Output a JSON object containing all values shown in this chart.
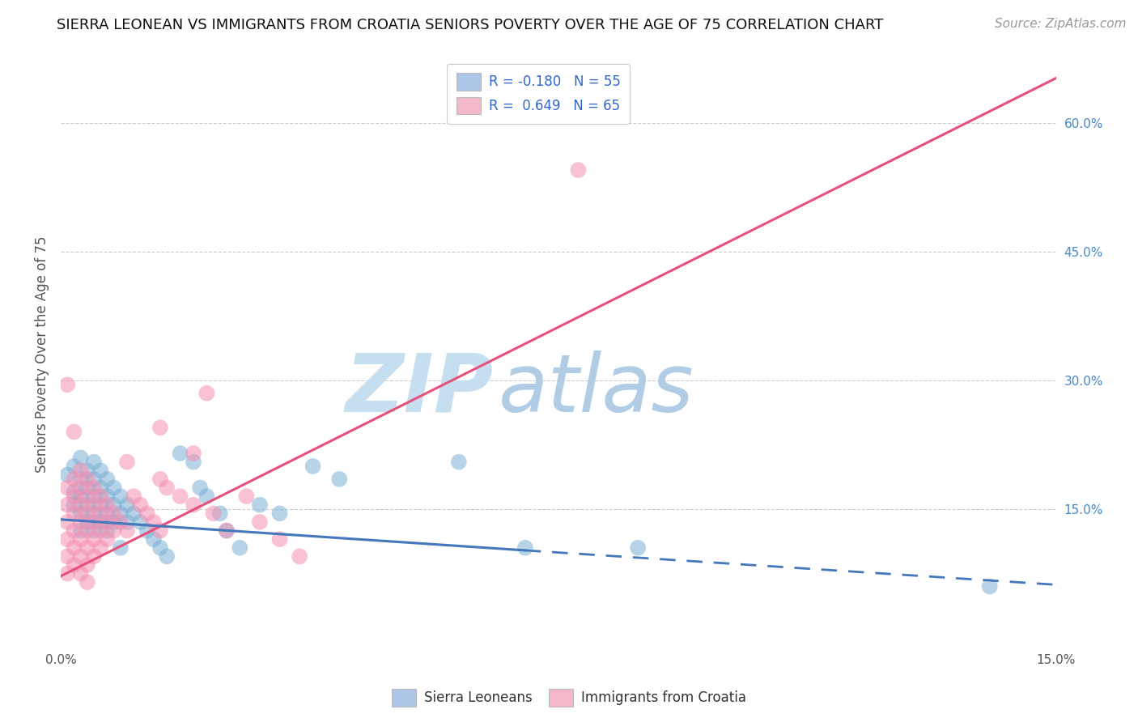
{
  "title": "SIERRA LEONEAN VS IMMIGRANTS FROM CROATIA SENIORS POVERTY OVER THE AGE OF 75 CORRELATION CHART",
  "source": "Source: ZipAtlas.com",
  "ylabel": "Seniors Poverty Over the Age of 75",
  "xlim": [
    0.0,
    0.15
  ],
  "ylim": [
    -0.01,
    0.67
  ],
  "background_color": "#ffffff",
  "grid_color": "#cccccc",
  "watermark_zip_color": "#c8dff0",
  "watermark_atlas_color": "#b8d4e8",
  "blue_scatter_color": "#7bafd4",
  "pink_scatter_color": "#f48fb1",
  "blue_line_color": "#4477bb",
  "pink_line_color": "#e8507a",
  "blue_legend_color": "#adc6e8",
  "pink_legend_color": "#f4b8c8",
  "title_fontsize": 13,
  "source_fontsize": 11,
  "ylabel_fontsize": 12,
  "axis_label_color": "#555555",
  "right_tick_color": "#4488cc",
  "blue_line_solid": {
    "x": [
      0.0,
      0.07
    ],
    "y": [
      0.138,
      0.102
    ]
  },
  "blue_line_dashed": {
    "x": [
      0.07,
      0.15
    ],
    "y": [
      0.102,
      0.062
    ]
  },
  "pink_line": {
    "x": [
      0.0,
      0.15
    ],
    "y": [
      0.072,
      0.652
    ]
  },
  "blue_scatter": [
    [
      0.001,
      0.19
    ],
    [
      0.002,
      0.2
    ],
    [
      0.002,
      0.17
    ],
    [
      0.002,
      0.155
    ],
    [
      0.003,
      0.21
    ],
    [
      0.003,
      0.185
    ],
    [
      0.003,
      0.165
    ],
    [
      0.003,
      0.145
    ],
    [
      0.003,
      0.125
    ],
    [
      0.004,
      0.195
    ],
    [
      0.004,
      0.175
    ],
    [
      0.004,
      0.155
    ],
    [
      0.004,
      0.135
    ],
    [
      0.005,
      0.205
    ],
    [
      0.005,
      0.185
    ],
    [
      0.005,
      0.165
    ],
    [
      0.005,
      0.145
    ],
    [
      0.005,
      0.125
    ],
    [
      0.006,
      0.195
    ],
    [
      0.006,
      0.175
    ],
    [
      0.006,
      0.155
    ],
    [
      0.006,
      0.135
    ],
    [
      0.007,
      0.185
    ],
    [
      0.007,
      0.165
    ],
    [
      0.007,
      0.145
    ],
    [
      0.007,
      0.125
    ],
    [
      0.008,
      0.175
    ],
    [
      0.008,
      0.155
    ],
    [
      0.008,
      0.135
    ],
    [
      0.009,
      0.165
    ],
    [
      0.009,
      0.145
    ],
    [
      0.009,
      0.105
    ],
    [
      0.01,
      0.155
    ],
    [
      0.01,
      0.135
    ],
    [
      0.011,
      0.145
    ],
    [
      0.012,
      0.135
    ],
    [
      0.013,
      0.125
    ],
    [
      0.014,
      0.115
    ],
    [
      0.015,
      0.105
    ],
    [
      0.016,
      0.095
    ],
    [
      0.018,
      0.215
    ],
    [
      0.02,
      0.205
    ],
    [
      0.021,
      0.175
    ],
    [
      0.022,
      0.165
    ],
    [
      0.024,
      0.145
    ],
    [
      0.025,
      0.125
    ],
    [
      0.027,
      0.105
    ],
    [
      0.03,
      0.155
    ],
    [
      0.033,
      0.145
    ],
    [
      0.038,
      0.2
    ],
    [
      0.042,
      0.185
    ],
    [
      0.06,
      0.205
    ],
    [
      0.07,
      0.105
    ],
    [
      0.087,
      0.105
    ],
    [
      0.14,
      0.06
    ]
  ],
  "pink_scatter": [
    [
      0.001,
      0.175
    ],
    [
      0.001,
      0.155
    ],
    [
      0.001,
      0.135
    ],
    [
      0.001,
      0.115
    ],
    [
      0.001,
      0.095
    ],
    [
      0.001,
      0.075
    ],
    [
      0.002,
      0.185
    ],
    [
      0.002,
      0.165
    ],
    [
      0.002,
      0.145
    ],
    [
      0.002,
      0.125
    ],
    [
      0.002,
      0.105
    ],
    [
      0.002,
      0.085
    ],
    [
      0.003,
      0.195
    ],
    [
      0.003,
      0.175
    ],
    [
      0.003,
      0.155
    ],
    [
      0.003,
      0.135
    ],
    [
      0.003,
      0.115
    ],
    [
      0.003,
      0.095
    ],
    [
      0.003,
      0.075
    ],
    [
      0.004,
      0.185
    ],
    [
      0.004,
      0.165
    ],
    [
      0.004,
      0.145
    ],
    [
      0.004,
      0.125
    ],
    [
      0.004,
      0.105
    ],
    [
      0.004,
      0.085
    ],
    [
      0.004,
      0.065
    ],
    [
      0.005,
      0.175
    ],
    [
      0.005,
      0.155
    ],
    [
      0.005,
      0.135
    ],
    [
      0.005,
      0.115
    ],
    [
      0.005,
      0.095
    ],
    [
      0.006,
      0.165
    ],
    [
      0.006,
      0.145
    ],
    [
      0.006,
      0.125
    ],
    [
      0.006,
      0.105
    ],
    [
      0.007,
      0.155
    ],
    [
      0.007,
      0.135
    ],
    [
      0.007,
      0.115
    ],
    [
      0.008,
      0.145
    ],
    [
      0.008,
      0.125
    ],
    [
      0.009,
      0.135
    ],
    [
      0.01,
      0.205
    ],
    [
      0.01,
      0.125
    ],
    [
      0.011,
      0.165
    ],
    [
      0.012,
      0.155
    ],
    [
      0.013,
      0.145
    ],
    [
      0.014,
      0.135
    ],
    [
      0.015,
      0.185
    ],
    [
      0.015,
      0.125
    ],
    [
      0.016,
      0.175
    ],
    [
      0.018,
      0.165
    ],
    [
      0.02,
      0.155
    ],
    [
      0.022,
      0.285
    ],
    [
      0.023,
      0.145
    ],
    [
      0.025,
      0.125
    ],
    [
      0.028,
      0.165
    ],
    [
      0.03,
      0.135
    ],
    [
      0.033,
      0.115
    ],
    [
      0.036,
      0.095
    ],
    [
      0.001,
      0.295
    ],
    [
      0.002,
      0.24
    ],
    [
      0.078,
      0.545
    ],
    [
      0.015,
      0.245
    ],
    [
      0.02,
      0.215
    ]
  ]
}
